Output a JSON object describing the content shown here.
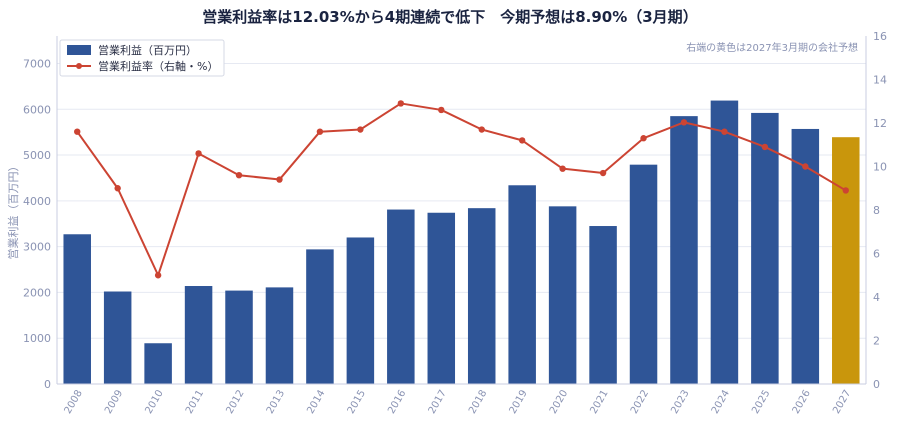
{
  "chart_data": {
    "type": "bar+line",
    "title": "営業利益率は12.03%から4期連続で低下　今期予想は8.90%（3月期）",
    "annotation": "右端の黄色は2027年3月期の会社予想",
    "ylabel_left": "営業利益（百万円）",
    "ylim_left": [
      0,
      7600
    ],
    "yticks_left": [
      "0",
      "1000",
      "2000",
      "3000",
      "4000",
      "5000",
      "6000",
      "7000"
    ],
    "ylim_right": [
      0,
      16
    ],
    "yticks_right": [
      "0",
      "2",
      "4",
      "6",
      "8",
      "10",
      "12",
      "14",
      "16"
    ],
    "legend_position": "top-left",
    "grid": true,
    "categories": [
      "2008",
      "2009",
      "2010",
      "2011",
      "2012",
      "2013",
      "2014",
      "2015",
      "2016",
      "2017",
      "2018",
      "2019",
      "2020",
      "2021",
      "2022",
      "2023",
      "2024",
      "2025",
      "2026",
      "2027"
    ],
    "series": [
      {
        "name": "営業利益（百万円）",
        "type": "bar",
        "axis": "left",
        "values": [
          3270,
          2020,
          890,
          2140,
          2040,
          2110,
          2940,
          3200,
          3810,
          3740,
          3840,
          4340,
          3880,
          3450,
          4790,
          5850,
          6190,
          5920,
          5570,
          5390
        ]
      },
      {
        "name": "営業利益率（右軸・%）",
        "type": "line",
        "axis": "right",
        "values": [
          11.6,
          9.0,
          5.0,
          10.6,
          9.6,
          9.4,
          11.6,
          11.7,
          12.9,
          12.6,
          11.7,
          11.2,
          9.9,
          9.7,
          11.3,
          12.03,
          11.6,
          10.9,
          10.0,
          8.9
        ]
      }
    ],
    "colors": {
      "bar": "#2f5597",
      "forecast_bar": "#c9960c",
      "line": "#cc4433"
    },
    "forecast_index": 19
  }
}
